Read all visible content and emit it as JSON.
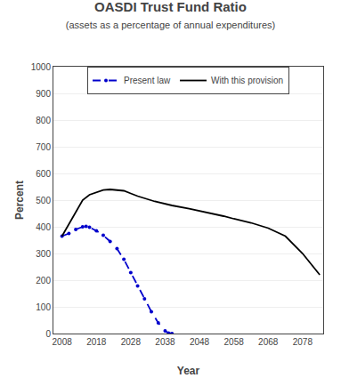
{
  "chart_data": {
    "type": "line",
    "title": "OASDI Trust Fund Ratio",
    "subtitle": "(assets as a percentage of annual expenditures)",
    "xlabel": "Year",
    "ylabel": "Percent",
    "xlim": [
      2005.5,
      2084
    ],
    "xticks": [
      2008,
      2018,
      2028,
      2038,
      2048,
      2058,
      2068,
      2078
    ],
    "ylim": [
      0,
      1000
    ],
    "yticks": [
      0,
      100,
      200,
      300,
      400,
      500,
      600,
      700,
      800,
      900,
      1000
    ],
    "grid": "y",
    "legend": "top",
    "series": [
      {
        "name": "Present law",
        "color": "#0000CC",
        "line_style": "dashed",
        "marker": "point",
        "x": [
          2008,
          2010,
          2012,
          2014,
          2015,
          2016,
          2018,
          2020,
          2022,
          2024,
          2026,
          2028,
          2030,
          2032,
          2034,
          2036,
          2038,
          2039,
          2040
        ],
        "values": [
          365,
          375,
          390,
          400,
          402,
          398,
          385,
          368,
          345,
          318,
          278,
          228,
          178,
          130,
          82,
          40,
          10,
          2,
          0
        ]
      },
      {
        "name": "With this provision",
        "color": "#000000",
        "line_style": "solid",
        "x": [
          2008,
          2010,
          2012,
          2014,
          2016,
          2018,
          2020,
          2022,
          2024,
          2026,
          2028,
          2030,
          2035,
          2040,
          2045,
          2050,
          2055,
          2058,
          2063,
          2068,
          2073,
          2078,
          2083
        ],
        "values": [
          365,
          410,
          460,
          500,
          520,
          530,
          538,
          540,
          538,
          535,
          525,
          515,
          495,
          480,
          468,
          455,
          440,
          430,
          415,
          395,
          365,
          300,
          220
        ]
      }
    ]
  }
}
